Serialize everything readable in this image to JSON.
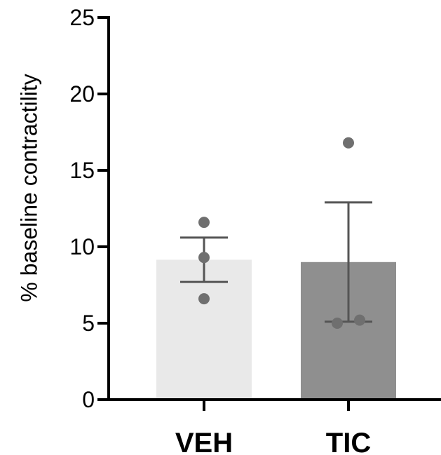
{
  "chart_data": {
    "type": "bar",
    "title": "",
    "xlabel": "",
    "ylabel": "% baseline contractility",
    "ylim": [
      0,
      25
    ],
    "yticks": [
      0,
      5,
      10,
      15,
      20,
      25
    ],
    "categories": [
      "VEH",
      "TIC"
    ],
    "bar_colors": [
      "#e9e9e9",
      "#8f8f8f"
    ],
    "point_color": "#6f6f6f",
    "line_color": "#555555",
    "values": [
      9.15,
      9.0
    ],
    "error": {
      "VEH": {
        "upper": 10.6,
        "lower": 7.7
      },
      "TIC": {
        "upper": 12.9,
        "lower": 5.1
      }
    },
    "points": {
      "VEH": [
        11.6,
        9.3,
        6.6
      ],
      "TIC": [
        16.8,
        5.0,
        5.2
      ]
    },
    "grid": false,
    "legend": "none"
  }
}
